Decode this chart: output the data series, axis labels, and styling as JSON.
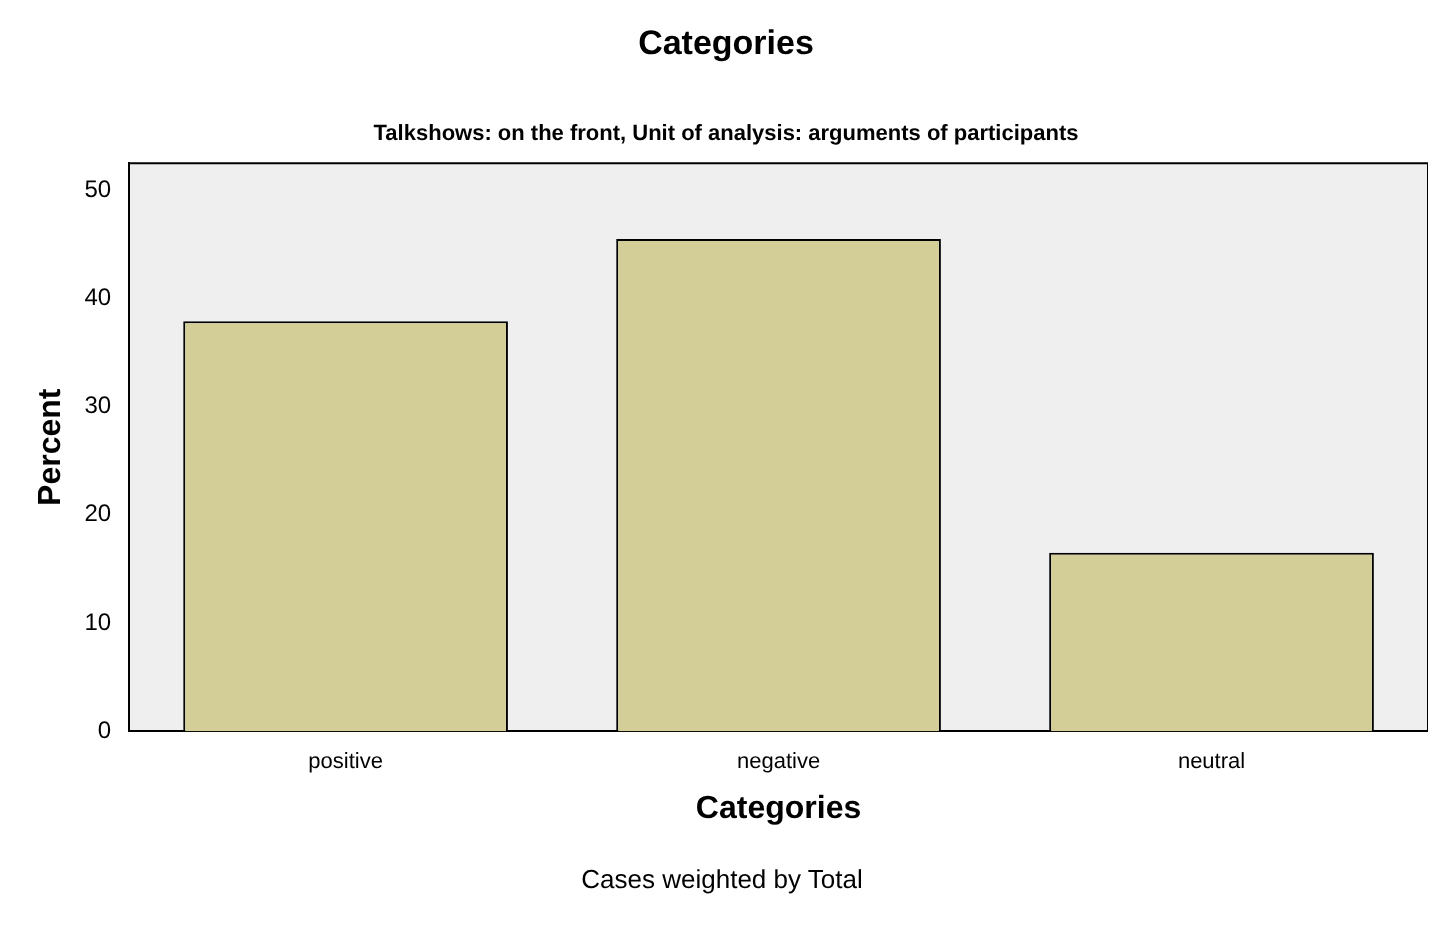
{
  "chart_data": {
    "type": "bar",
    "title": "Categories",
    "subtitle": "Talkshows: on the front, Unit of analysis: arguments of participants",
    "xlabel": "Categories",
    "ylabel": "Percent",
    "categories": [
      "positive",
      "negative",
      "neutral"
    ],
    "values": [
      37.9,
      45.5,
      16.5
    ],
    "color": "#d3ce97",
    "ylim": [
      0,
      52.5
    ],
    "yticks": [
      0,
      10,
      20,
      30,
      40,
      50
    ],
    "grid": false,
    "legend": false,
    "annotations": [
      "Cases weighted by Total"
    ]
  }
}
